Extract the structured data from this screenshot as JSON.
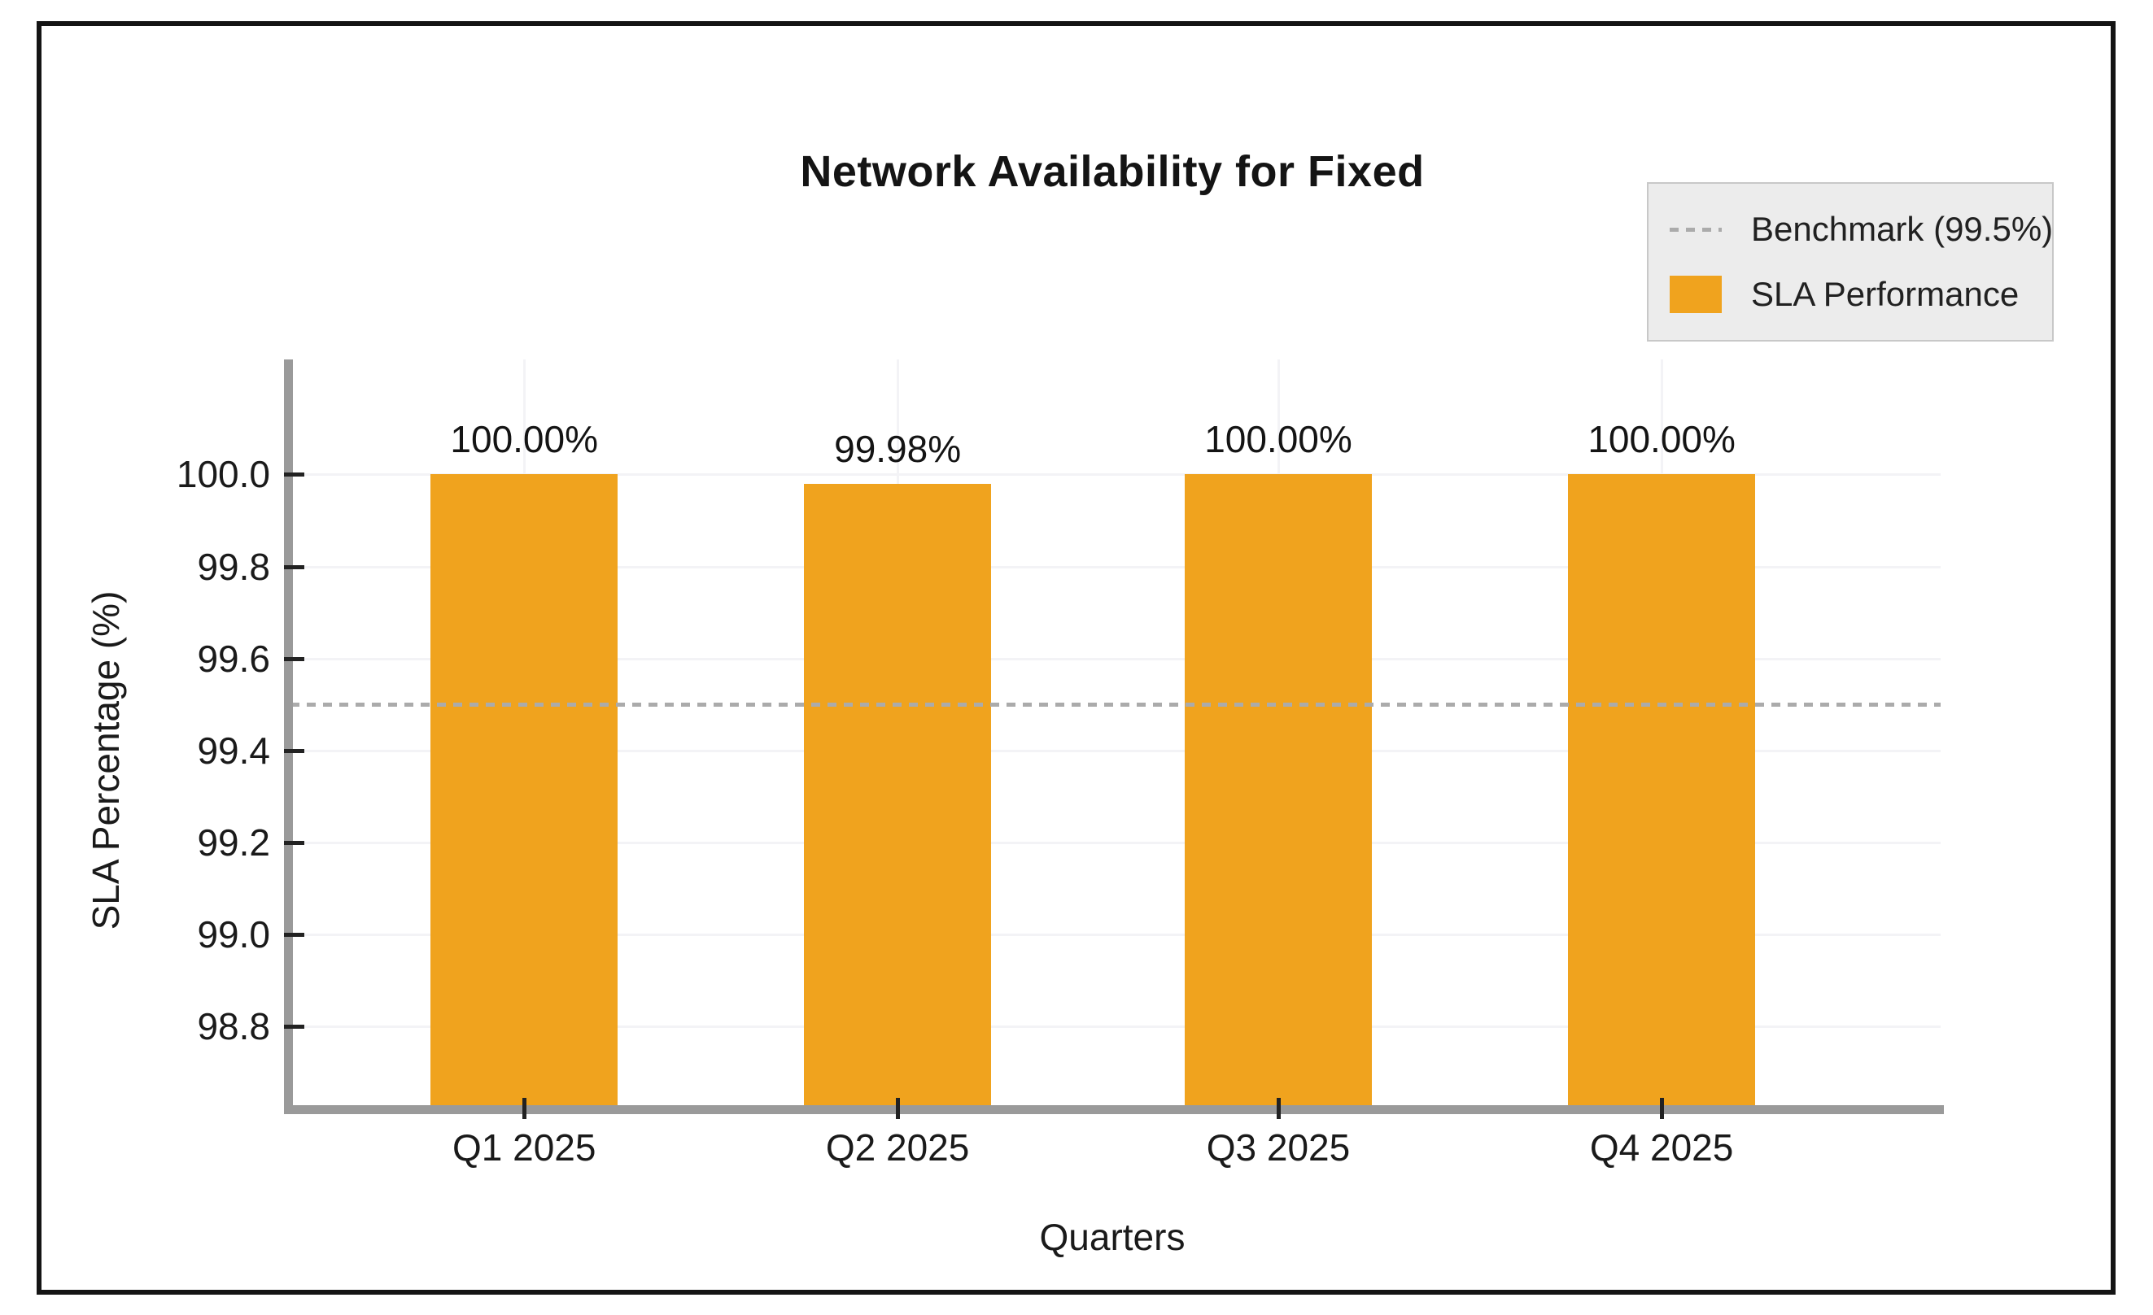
{
  "title": "Network Availability for Fixed",
  "legend": {
    "items": [
      {
        "label": "Benchmark (99.5%)",
        "type": "dashed-line"
      },
      {
        "label": "SLA Performance",
        "type": "swatch"
      }
    ]
  },
  "colors": {
    "bar": "#F0A31E",
    "benchmark_line": "#ABABAB",
    "axis_line": "#9A9A9A",
    "tick_mark": "#222222",
    "gridline": "#F3F3F6",
    "legend_bg": "#ECECEC",
    "legend_border": "#C8C8C8",
    "title_text": "#141414",
    "text": "#1A1A1A"
  },
  "chart_data": {
    "type": "bar",
    "title": "Network Availability for Fixed",
    "categories": [
      "Q1 2025",
      "Q2 2025",
      "Q3 2025",
      "Q4 2025"
    ],
    "series": [
      {
        "name": "SLA Performance",
        "values": [
          100.0,
          99.98,
          100.0,
          100.0
        ]
      }
    ],
    "bar_labels": [
      "100.00%",
      "99.98%",
      "100.00%",
      "100.00%"
    ],
    "benchmark": {
      "label": "Benchmark (99.5%)",
      "value": 99.5
    },
    "xlabel": "Quarters",
    "ylabel": "SLA Percentage (%)",
    "ylim": [
      98.62,
      100.25
    ],
    "yticks": [
      100.0,
      99.8,
      99.6,
      99.4,
      99.2,
      99.0,
      98.8
    ],
    "ytick_labels": [
      "100.0",
      "99.8",
      "99.6",
      "99.4",
      "99.2",
      "99.0",
      "98.8"
    ],
    "grid": true,
    "legend_position": "top-right"
  }
}
